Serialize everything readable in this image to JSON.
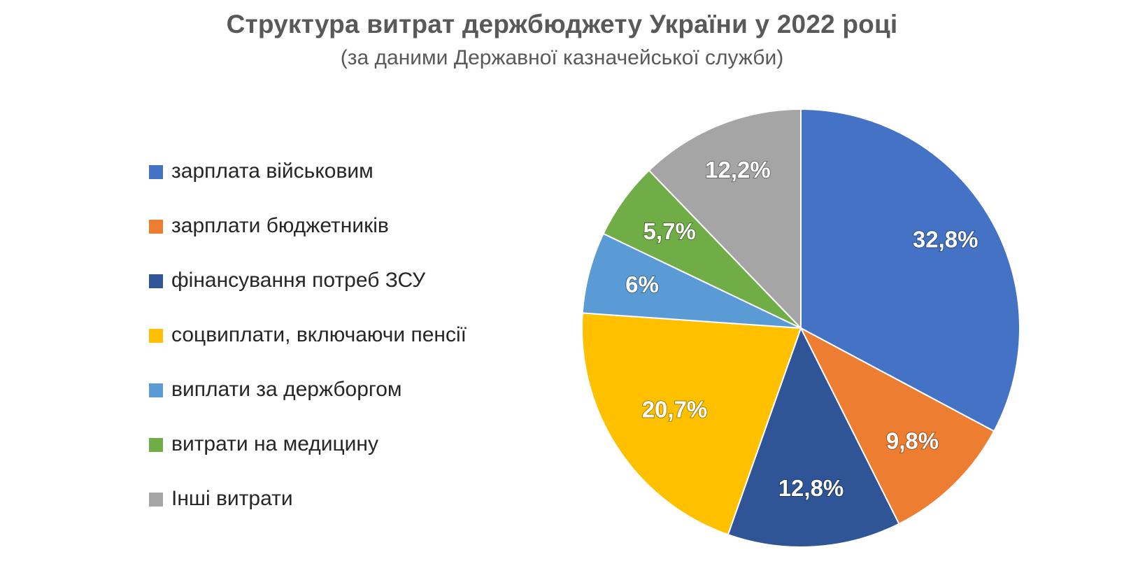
{
  "chart_data": {
    "type": "pie",
    "title": "Структура витрат держбюджету України у 2022 році",
    "subtitle": "(за даними Державної казначейської служби)",
    "categories": [
      "зарплата військовим",
      "зарплати бюджетників",
      "фінансування потреб ЗСУ",
      "соцвиплати, включаючи пенсії",
      "виплати за держборгом",
      "витрати на медицину",
      "Інші витрати"
    ],
    "values": [
      32.8,
      9.8,
      12.8,
      20.7,
      6,
      5.7,
      12.2
    ],
    "data_labels": [
      "32,8%",
      "9,8%",
      "12,8%",
      "20,7%",
      "6%",
      "5,7%",
      "12,2%"
    ],
    "colors": [
      "#4472C4",
      "#ED7D31",
      "#2F5597",
      "#FFC000",
      "#5B9BD5",
      "#70AD47",
      "#A5A5A5"
    ],
    "start_angle": "12 o'clock",
    "direction": "clockwise",
    "legend_position": "left"
  }
}
